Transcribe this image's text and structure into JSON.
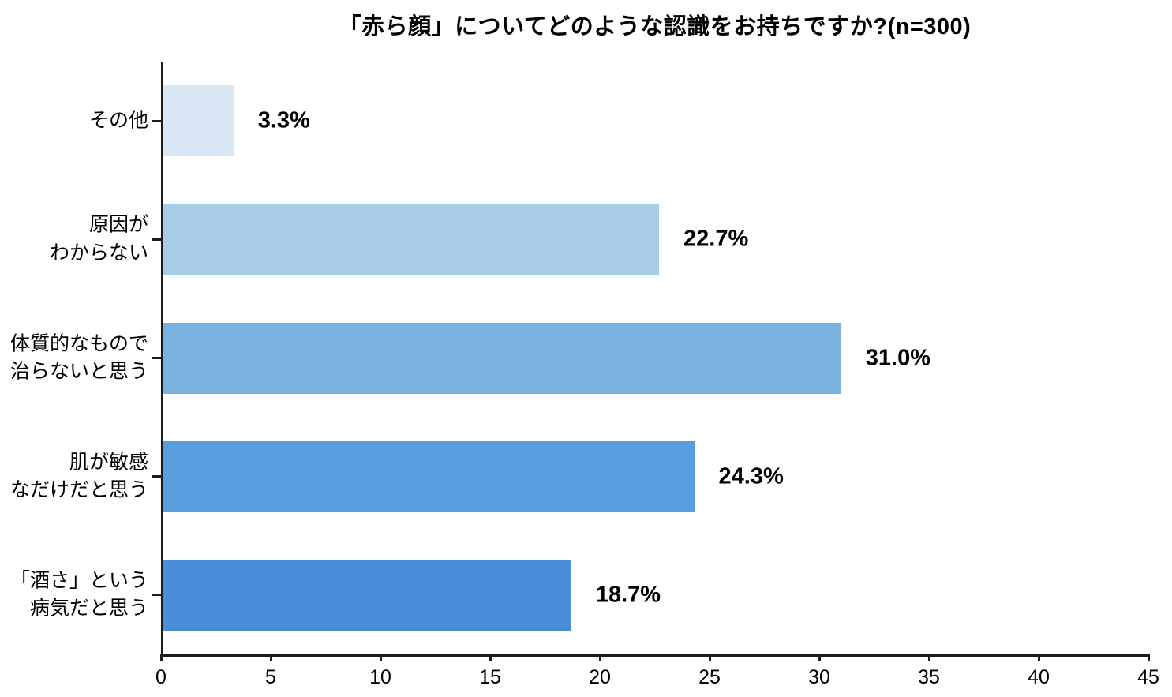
{
  "chart_data": {
    "type": "bar",
    "orientation": "horizontal",
    "title": "「赤ら顔」についてどのような認識をお持ちですか?(n=300)",
    "n_label": "n=300",
    "categories": [
      "その他",
      "原因が\nわからない",
      "体質的なもので\n治らないと思う",
      "肌が敏感\nなだけだと思う",
      "「酒さ」という\n病気だと思う"
    ],
    "values": [
      3.3,
      22.7,
      31.0,
      24.3,
      18.7
    ],
    "value_labels": [
      "3.3%",
      "22.7%",
      "31.0%",
      "24.3%",
      "18.7%"
    ],
    "bar_colors": [
      "#d9e7f5",
      "#a7cde8",
      "#7ab2e0",
      "#589ede",
      "#4a8dd8"
    ],
    "xlabel": "",
    "ylabel": "",
    "xlim": [
      0,
      45
    ],
    "xticks": [
      0,
      5,
      10,
      15,
      20,
      25,
      30,
      35,
      40,
      45
    ],
    "grid": false,
    "legend": "none",
    "axis_color": "#1c1c1c",
    "text_color": "#000000",
    "background": "#ffffff"
  }
}
